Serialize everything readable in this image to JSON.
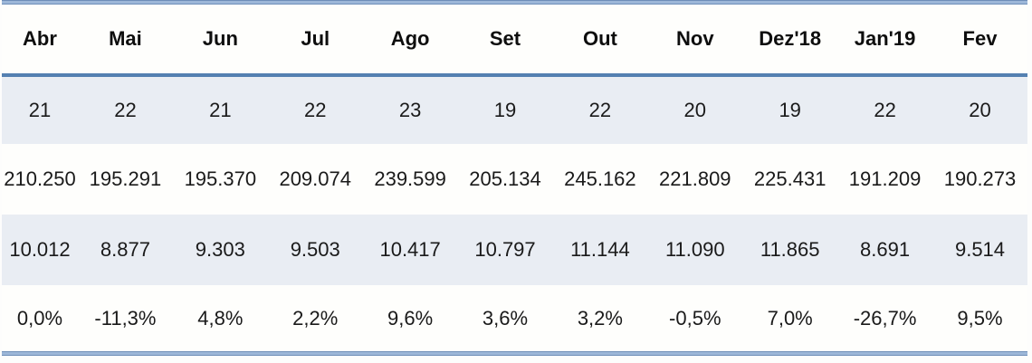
{
  "chart_data": {
    "type": "table",
    "columns": [
      "Abr",
      "Mai",
      "Jun",
      "Jul",
      "Ago",
      "Set",
      "Out",
      "Nov",
      "Dez'18",
      "Jan'19",
      "Fev"
    ],
    "rows": [
      [
        "21",
        "22",
        "21",
        "22",
        "23",
        "19",
        "22",
        "20",
        "19",
        "22",
        "20"
      ],
      [
        "210.250",
        "195.291",
        "195.370",
        "209.074",
        "239.599",
        "205.134",
        "245.162",
        "221.809",
        "225.431",
        "191.209",
        "190.273"
      ],
      [
        "10.012",
        "8.877",
        "9.303",
        "9.503",
        "10.417",
        "10.797",
        "11.144",
        "11.090",
        "11.865",
        "8.691",
        "9.514"
      ],
      [
        "0,0%",
        "-11,3%",
        "4,8%",
        "2,2%",
        "9,6%",
        "3,6%",
        "3,2%",
        "-0,5%",
        "7,0%",
        "-26,7%",
        "9,5%"
      ]
    ],
    "legend_position": "none",
    "grid": "banded-rows"
  },
  "colors": {
    "accent_line": "#5480B1",
    "band_edge": "#6E8EB8",
    "band_center": "#9DB7D8",
    "row_shade": "#E9EDF3",
    "row_plain": "#FEFEFC",
    "text": "#1A1A1A"
  }
}
